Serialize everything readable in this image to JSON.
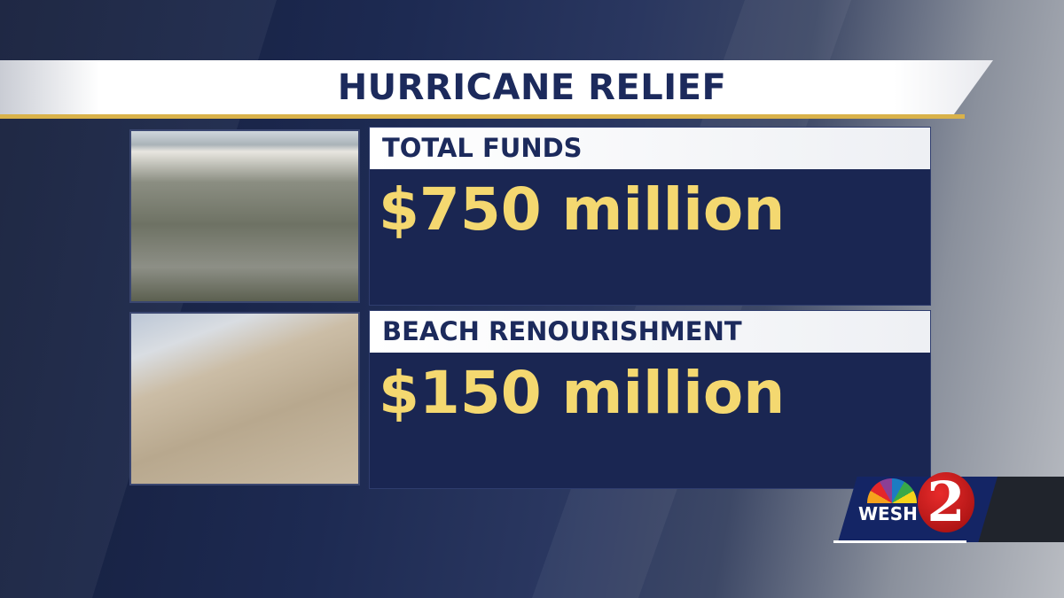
{
  "title": "HURRICANE RELIEF",
  "items": [
    {
      "label": "TOTAL FUNDS",
      "value": "$750 million",
      "photo": "aerial-hurricane-damage"
    },
    {
      "label": "BEACH RENOURISHMENT",
      "value": "$150 million",
      "photo": "eroded-beach-dune-fence"
    }
  ],
  "logo": {
    "text": "WESH",
    "number": "2"
  },
  "colors": {
    "navy": "#1a2652",
    "gold": "#f4d870",
    "title": "#1c2a5c"
  }
}
